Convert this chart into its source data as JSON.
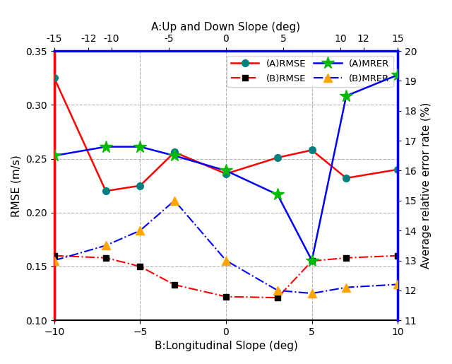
{
  "title_top": "A:Up and Down Slope (deg)",
  "title_bottom": "B:Longitudinal Slope (deg)",
  "ylabel_left": "RMSE (m/s)",
  "ylabel_right": "Average relative error rate (%)",
  "x_A": [
    -15,
    -12,
    -10,
    -5,
    0,
    5,
    10,
    12,
    15
  ],
  "x_B": [
    -10,
    -7,
    -5,
    -3,
    0,
    3,
    5,
    7,
    10
  ],
  "x_A_ticks": [
    -15,
    -12,
    -10,
    -5,
    0,
    5,
    10,
    12,
    15
  ],
  "x_B_ticks": [
    -10,
    -5,
    0,
    5,
    10
  ],
  "A_RMSE": [
    0.325,
    0.22,
    0.225,
    0.256,
    0.236,
    0.251,
    0.258,
    0.232,
    0.24
  ],
  "B_RMSE": [
    0.16,
    0.158,
    0.15,
    0.133,
    0.122,
    0.121,
    0.155,
    0.158,
    0.16
  ],
  "A_MRER_pct": [
    16.5,
    16.8,
    16.8,
    16.5,
    16.0,
    15.2,
    13.0,
    18.5,
    19.2
  ],
  "B_MRER_pct": [
    13.0,
    13.5,
    14.0,
    15.0,
    13.0,
    12.0,
    11.9,
    12.1,
    12.2
  ],
  "ylim_left": [
    0.1,
    0.35
  ],
  "ylim_right": [
    11,
    20
  ],
  "yticks_left": [
    0.1,
    0.15,
    0.2,
    0.25,
    0.3,
    0.35
  ],
  "yticks_right": [
    11,
    12,
    13,
    14,
    15,
    16,
    17,
    18,
    19,
    20
  ],
  "teal": "#008080",
  "red": "#FF0000",
  "blue": "#0000FF",
  "green": "#00BB00",
  "orange": "#FFA500",
  "black": "#000000"
}
